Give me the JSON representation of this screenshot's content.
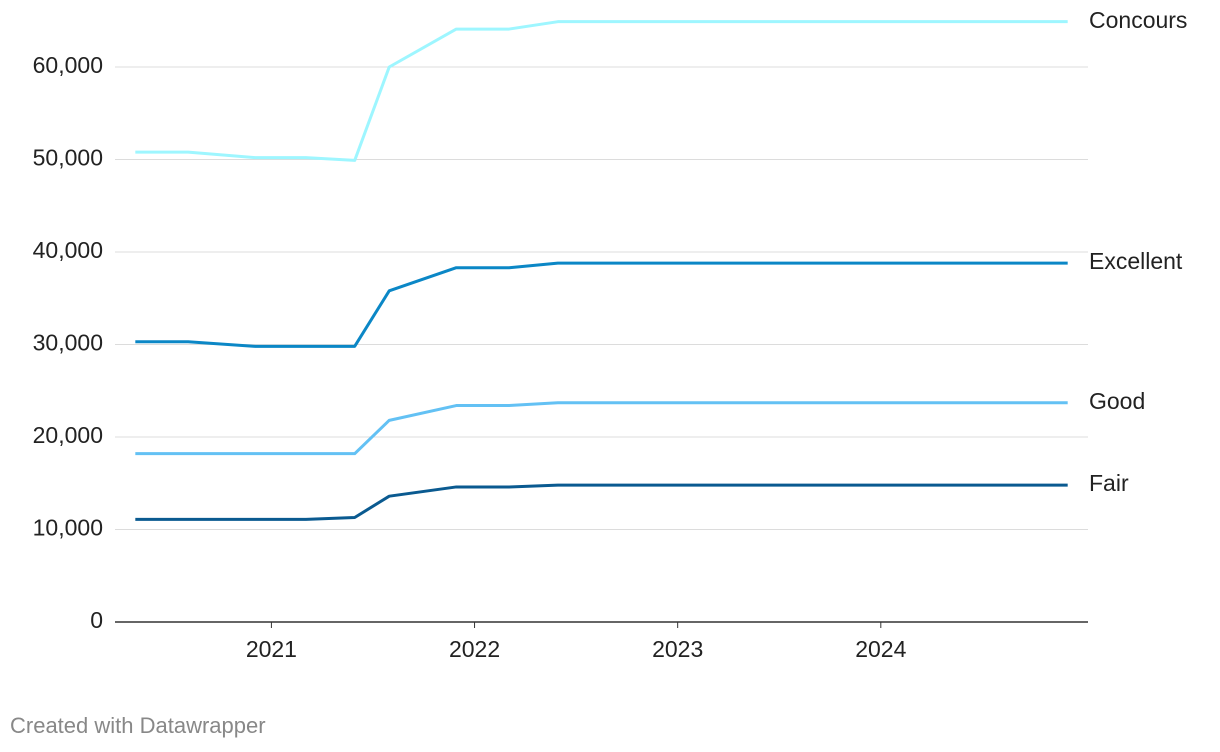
{
  "chart_data": {
    "type": "line",
    "x": [
      2020.33,
      2020.59,
      2020.92,
      2021.17,
      2021.41,
      2021.58,
      2021.91,
      2022.17,
      2022.41,
      2022.67,
      2024.92
    ],
    "series": [
      {
        "name": "Concours",
        "color": "#9ef6ff",
        "values": [
          50800,
          50800,
          50200,
          50200,
          49900,
          60000,
          64100,
          64100,
          64900,
          64900,
          64900
        ]
      },
      {
        "name": "Excellent",
        "color": "#0b87c6",
        "values": [
          30300,
          30300,
          29800,
          29800,
          29800,
          35800,
          38300,
          38300,
          38800,
          38800,
          38800
        ]
      },
      {
        "name": "Good",
        "color": "#63c1f4",
        "values": [
          18200,
          18200,
          18200,
          18200,
          18200,
          21800,
          23400,
          23400,
          23700,
          23700,
          23700
        ]
      },
      {
        "name": "Fair",
        "color": "#0a5a90",
        "values": [
          11100,
          11100,
          11100,
          11100,
          11300,
          13600,
          14600,
          14600,
          14800,
          14800,
          14800
        ]
      }
    ],
    "xlim": [
      2020.23,
      2025.02
    ],
    "xticks": [
      2021,
      2022,
      2023,
      2024
    ],
    "ylim": [
      0,
      65000
    ],
    "yticks": [
      0,
      {
        "value": 10000,
        "label": "10,000"
      },
      {
        "value": 20000,
        "label": "20,000"
      },
      {
        "value": 30000,
        "label": "30,000"
      },
      {
        "value": 40000,
        "label": "40,000"
      },
      {
        "value": 50000,
        "label": "50,000"
      },
      {
        "value": 60000,
        "label": "60,000"
      }
    ],
    "grid": true,
    "credit": "Created with Datawrapper"
  }
}
